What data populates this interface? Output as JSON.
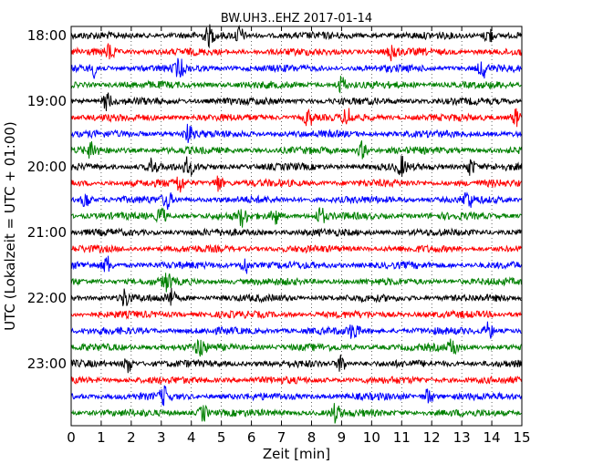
{
  "chart_data": {
    "type": "line",
    "title": "BW.UH3..EHZ 2017-01-14",
    "xlabel": "Zeit  [min]",
    "ylabel": "UTC (Lokalzeit = UTC + 01:00)",
    "xlim": [
      0,
      15
    ],
    "x_ticks": [
      "0",
      "1",
      "2",
      "3",
      "4",
      "5",
      "6",
      "7",
      "8",
      "9",
      "10",
      "11",
      "12",
      "13",
      "14",
      "15"
    ],
    "y_tick_labels": [
      "18:00",
      "19:00",
      "20:00",
      "21:00",
      "22:00",
      "23:00"
    ],
    "grid": "vertical dotted",
    "trace_colors": [
      "#000000",
      "#ff0000",
      "#0000ff",
      "#008000"
    ],
    "traces_per_hour": 4,
    "trace_start_times": [
      "18:00",
      "18:15",
      "18:30",
      "18:45",
      "19:00",
      "19:15",
      "19:30",
      "19:45",
      "20:00",
      "20:15",
      "20:30",
      "20:45",
      "21:00",
      "21:15",
      "21:30",
      "21:45",
      "22:00",
      "22:15",
      "22:30",
      "22:45",
      "23:00",
      "23:15",
      "23:30",
      "23:45"
    ],
    "trace_events_min": [
      [
        4.6,
        5.6,
        13.9
      ],
      [
        1.3,
        10.7
      ],
      [
        0.8,
        3.6,
        13.7
      ],
      [
        9.0
      ],
      [
        1.2
      ],
      [
        7.9,
        9.2,
        14.8
      ],
      [
        3.9
      ],
      [
        0.7,
        9.7
      ],
      [
        2.7,
        3.9,
        11.0,
        13.3
      ],
      [
        3.6,
        4.9
      ],
      [
        0.5,
        3.2,
        13.2
      ],
      [
        3.0,
        5.7,
        6.8,
        8.3
      ],
      [],
      [],
      [
        1.2,
        5.8
      ],
      [
        3.2
      ],
      [
        1.8,
        3.3
      ],
      [],
      [
        9.4,
        13.9
      ],
      [
        4.3,
        12.7
      ],
      [
        1.9,
        9.0
      ],
      [],
      [
        3.1,
        11.9
      ],
      [
        4.4,
        8.8
      ]
    ]
  }
}
